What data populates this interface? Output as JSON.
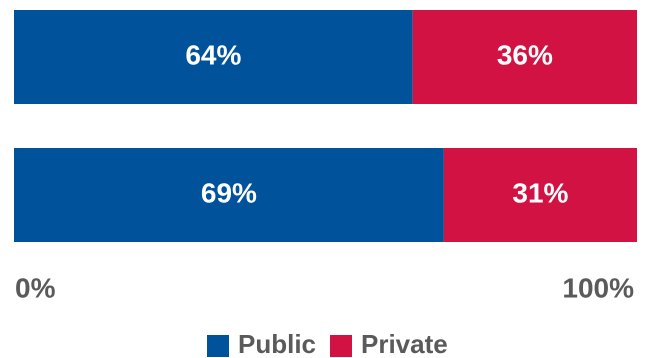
{
  "chart_data": {
    "type": "bar",
    "orientation": "horizontal",
    "stacked": true,
    "categories": [
      "",
      ""
    ],
    "series": [
      {
        "name": "Public",
        "color": "#00529B",
        "values": [
          64,
          69
        ],
        "labels": [
          "64%",
          "69%"
        ]
      },
      {
        "name": "Private",
        "color": "#D21242",
        "values": [
          36,
          31
        ],
        "labels": [
          "36%",
          "31%"
        ]
      }
    ],
    "xlim": [
      0,
      100
    ],
    "x_tick_labels": [
      "0%",
      "100%"
    ],
    "grid": false,
    "legend_placement": "bottom-center",
    "title": "",
    "xlabel": "",
    "ylabel": ""
  }
}
